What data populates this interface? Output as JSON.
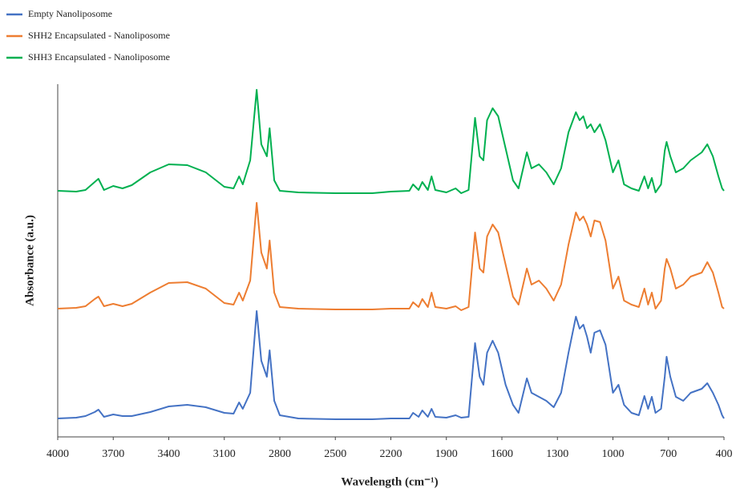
{
  "chart_data": {
    "type": "line",
    "x_label": "Wavelength (cm⁻¹)",
    "y_label": "Absorbance (a.u.)",
    "xlim": [
      4000,
      400
    ],
    "xticks": [
      4000,
      3700,
      3400,
      3100,
      2800,
      2500,
      2200,
      1900,
      1600,
      1300,
      1000,
      700,
      400
    ],
    "ylim": [
      0,
      440
    ],
    "grid": false,
    "legend": "top-left",
    "x": [
      4000,
      3900,
      3850,
      3800,
      3780,
      3750,
      3700,
      3650,
      3600,
      3500,
      3400,
      3300,
      3200,
      3100,
      3050,
      3020,
      3000,
      2960,
      2925,
      2900,
      2870,
      2855,
      2830,
      2800,
      2700,
      2500,
      2300,
      2200,
      2100,
      2080,
      2050,
      2030,
      2000,
      1980,
      1960,
      1900,
      1850,
      1820,
      1780,
      1745,
      1720,
      1700,
      1680,
      1650,
      1620,
      1580,
      1540,
      1510,
      1465,
      1440,
      1400,
      1360,
      1320,
      1280,
      1240,
      1200,
      1180,
      1160,
      1140,
      1120,
      1100,
      1070,
      1040,
      1000,
      970,
      940,
      900,
      860,
      830,
      810,
      790,
      770,
      740,
      720,
      710,
      690,
      660,
      620,
      580,
      520,
      490,
      460,
      430,
      410,
      400
    ],
    "series": [
      {
        "name": "Empty Nanoliposome",
        "color": "#4472c4",
        "values": [
          23,
          24,
          26,
          31,
          34,
          25,
          28,
          26,
          26,
          31,
          38,
          40,
          37,
          30,
          29,
          43,
          35,
          55,
          157,
          95,
          75,
          108,
          45,
          27,
          23,
          22,
          22,
          23,
          23,
          30,
          25,
          33,
          25,
          35,
          25,
          24,
          27,
          24,
          25,
          117,
          75,
          65,
          105,
          120,
          105,
          65,
          40,
          30,
          73,
          55,
          50,
          45,
          37,
          55,
          105,
          150,
          135,
          140,
          125,
          105,
          130,
          133,
          115,
          55,
          65,
          40,
          30,
          27,
          51,
          35,
          50,
          30,
          35,
          75,
          100,
          75,
          50,
          45,
          55,
          60,
          67,
          55,
          40,
          27,
          23
        ]
      },
      {
        "name": "SHH2 Encapsulated - Nanoliposome",
        "color": "#ed7d31",
        "values": [
          160,
          161,
          163,
          172,
          175,
          163,
          166,
          163,
          166,
          180,
          192,
          193,
          185,
          167,
          165,
          180,
          170,
          195,
          292,
          230,
          210,
          245,
          180,
          162,
          160,
          159,
          159,
          160,
          160,
          168,
          162,
          172,
          162,
          180,
          162,
          160,
          163,
          158,
          162,
          255,
          210,
          205,
          250,
          265,
          255,
          215,
          175,
          165,
          210,
          190,
          195,
          185,
          170,
          190,
          240,
          280,
          270,
          275,
          265,
          250,
          270,
          268,
          245,
          185,
          200,
          170,
          165,
          162,
          185,
          165,
          180,
          160,
          170,
          210,
          222,
          210,
          185,
          190,
          200,
          205,
          218,
          205,
          180,
          162,
          160
        ]
      },
      {
        "name": "SHH3 Encapsulated - Nanoliposome",
        "color": "#00b050",
        "values": [
          307,
          306,
          308,
          318,
          322,
          308,
          313,
          310,
          314,
          330,
          340,
          339,
          330,
          312,
          310,
          325,
          315,
          345,
          433,
          365,
          350,
          385,
          320,
          307,
          305,
          304,
          304,
          306,
          307,
          315,
          308,
          318,
          308,
          325,
          308,
          305,
          310,
          304,
          308,
          398,
          350,
          345,
          395,
          410,
          400,
          360,
          320,
          310,
          355,
          335,
          340,
          330,
          315,
          335,
          380,
          405,
          395,
          400,
          385,
          390,
          380,
          390,
          370,
          330,
          345,
          315,
          310,
          307,
          325,
          310,
          323,
          305,
          315,
          357,
          368,
          350,
          330,
          335,
          345,
          355,
          365,
          350,
          325,
          310,
          307
        ]
      }
    ]
  }
}
